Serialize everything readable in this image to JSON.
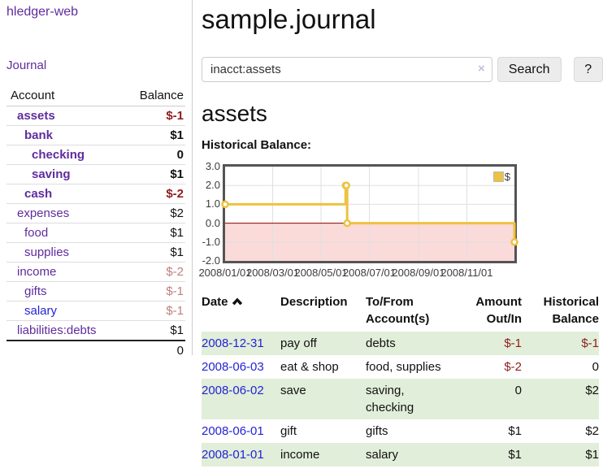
{
  "sidebar": {
    "app_title": "hledger-web",
    "journal_label": "Journal",
    "accounts_table": {
      "headers": {
        "account": "Account",
        "balance": "Balance"
      },
      "rows": [
        {
          "name": "assets",
          "balance": "$-1"
        },
        {
          "name": "bank",
          "balance": "$1"
        },
        {
          "name": "checking",
          "balance": "0"
        },
        {
          "name": "saving",
          "balance": "$1"
        },
        {
          "name": "cash",
          "balance": "$-2"
        },
        {
          "name": "expenses",
          "balance": "$2"
        },
        {
          "name": "food",
          "balance": "$1"
        },
        {
          "name": "supplies",
          "balance": "$1"
        },
        {
          "name": "income",
          "balance": "$-2"
        },
        {
          "name": "gifts",
          "balance": "$-1"
        },
        {
          "name": "salary",
          "balance": "$-1"
        },
        {
          "name": "liabilities:debts",
          "balance": "$1"
        }
      ],
      "total": "0"
    }
  },
  "main": {
    "title": "sample.journal",
    "search": {
      "value": "inacct:assets",
      "clear_icon": "×",
      "button_label": "Search",
      "help_label": "?"
    },
    "account_heading": "assets",
    "chart_label": "Historical Balance:",
    "register_table": {
      "headers": {
        "date": "Date",
        "description": "Description",
        "accounts": "To/From Account(s)",
        "amount": "Amount Out/In",
        "balance": "Historical Balance"
      },
      "rows": [
        {
          "date": "2008-12-31",
          "description": "pay off",
          "accounts": "debts",
          "amount": "$-1",
          "balance": "$-1"
        },
        {
          "date": "2008-06-03",
          "description": "eat & shop",
          "accounts": "food, supplies",
          "amount": "$-2",
          "balance": "0"
        },
        {
          "date": "2008-06-02",
          "description": "save",
          "accounts": "saving, checking",
          "amount": "0",
          "balance": "$2"
        },
        {
          "date": "2008-06-01",
          "description": "gift",
          "accounts": "gifts",
          "amount": "$1",
          "balance": "$2"
        },
        {
          "date": "2008-01-01",
          "description": "income",
          "accounts": "salary",
          "amount": "$1",
          "balance": "$1"
        }
      ]
    }
  },
  "chart_data": {
    "type": "line",
    "step": true,
    "title": "Historical Balance",
    "legend": {
      "position": "top-right",
      "entries": [
        "$"
      ]
    },
    "series": [
      {
        "name": "$",
        "color": "#EDC240",
        "points": [
          [
            "2008-01-01",
            1
          ],
          [
            "2008-06-01",
            2
          ],
          [
            "2008-06-02",
            2
          ],
          [
            "2008-06-03",
            0
          ],
          [
            "2008-12-31",
            -1
          ]
        ]
      }
    ],
    "x_ticks": [
      "2008/01/01",
      "2008/03/01",
      "2008/05/01",
      "2008/07/01",
      "2008/09/01",
      "2008/11/01"
    ],
    "y_ticks": [
      3.0,
      2.0,
      1.0,
      0.0,
      -1.0,
      -2.0
    ],
    "ylim": [
      -2,
      3
    ],
    "grid": true,
    "zero_line_color": "#8b0000",
    "below_zero_fill": "#fbdada",
    "grid_color": "#e0e0e0",
    "border_color": "#545454"
  }
}
